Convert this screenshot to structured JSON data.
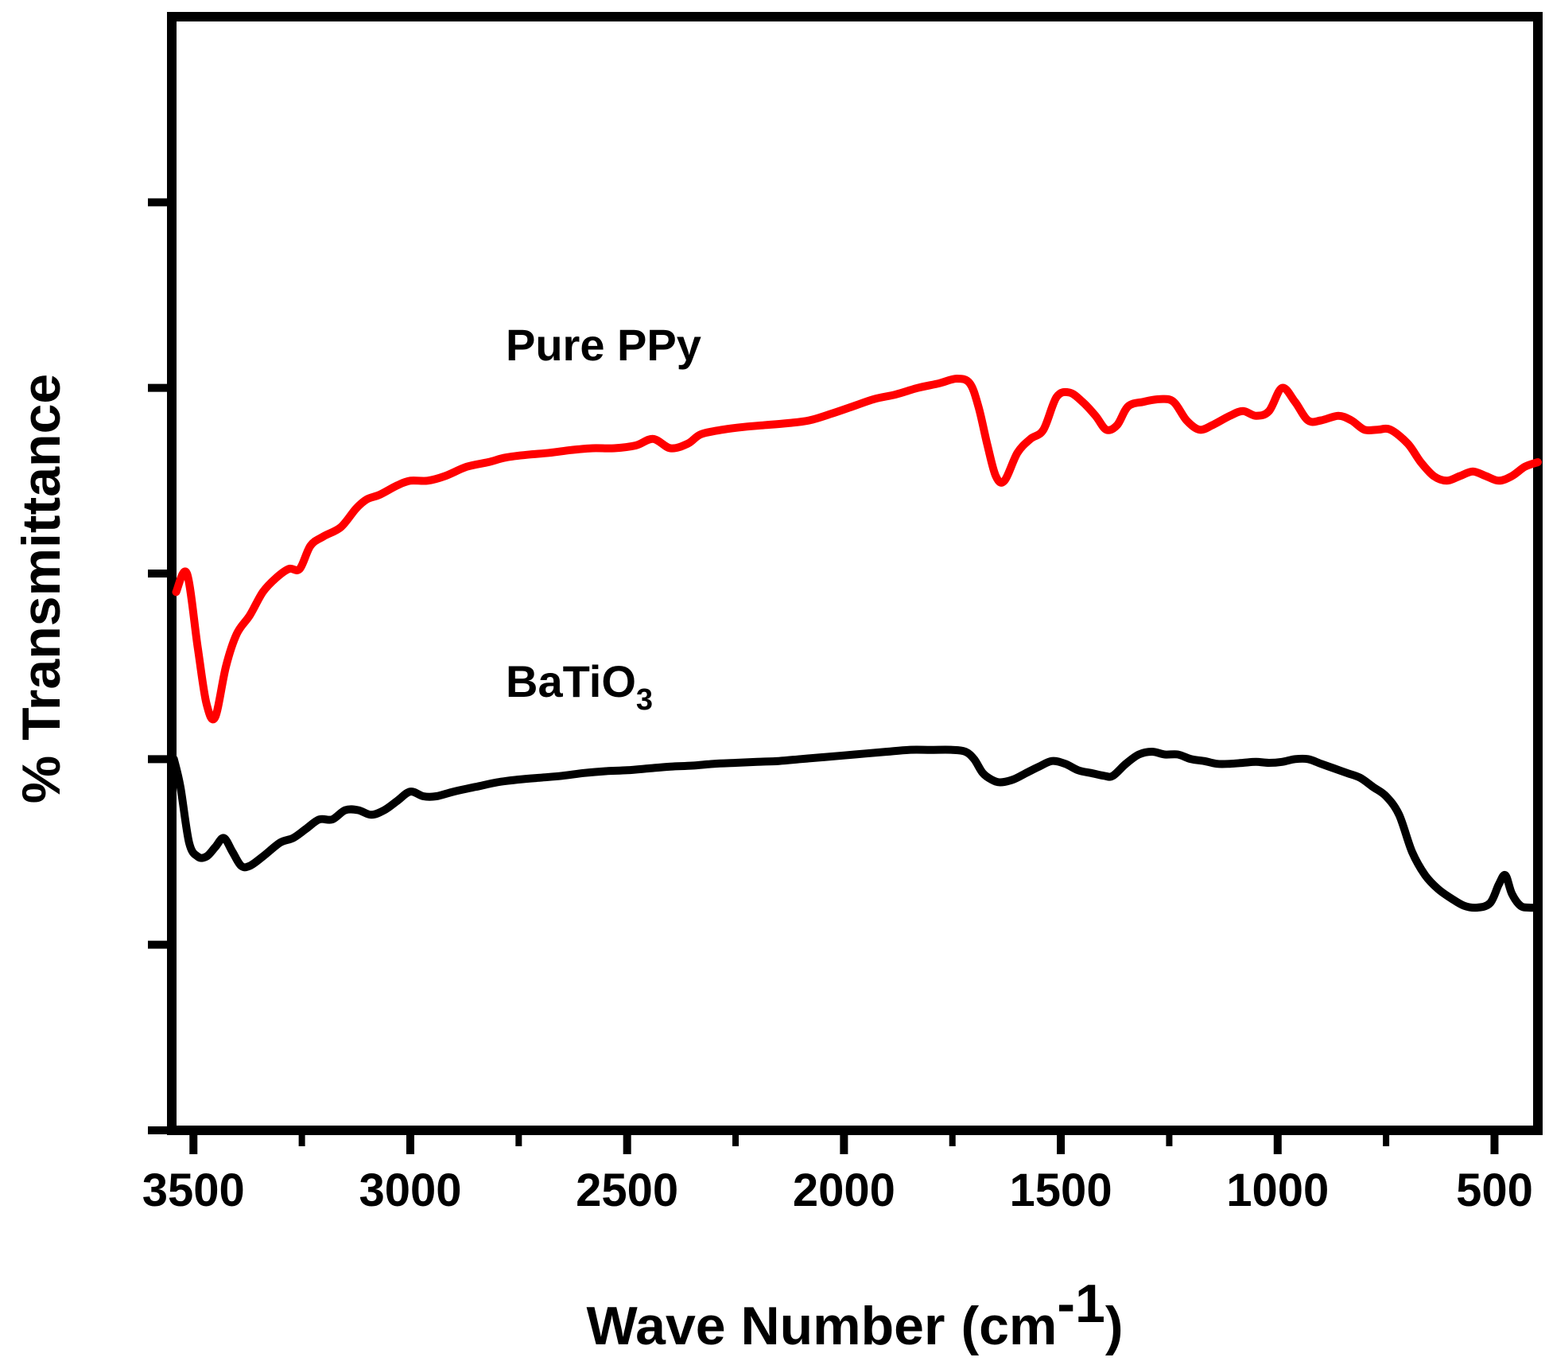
{
  "chart_data": {
    "type": "line",
    "title": "",
    "xlabel": "Wave Number",
    "xlabel_unit_base": "(cm",
    "xlabel_unit_exp": "-1",
    "xlabel_unit_close": ")",
    "ylabel": "% Transmittance",
    "xlim": [
      3550,
      400
    ],
    "x_reversed": true,
    "ylim": [
      0,
      12
    ],
    "y_ticks": [
      0,
      2,
      4,
      6,
      8,
      10
    ],
    "y_tick_labels_shown": false,
    "x_ticks": [
      3500,
      3000,
      2500,
      2000,
      1500,
      1000,
      500
    ],
    "x_tick_labels": [
      "3500",
      "3000",
      "2500",
      "2000",
      "1500",
      "1000",
      "500"
    ],
    "x_minor_ticks": [
      3250,
      2750,
      2250,
      1750,
      1250,
      750
    ],
    "legend": "none",
    "grid": false,
    "series": [
      {
        "name": "Pure PPy",
        "label_text": "Pure PPy",
        "color": "#ff0000",
        "points": [
          [
            3540,
            5.8
          ],
          [
            3515,
            6.0
          ],
          [
            3490,
            5.2
          ],
          [
            3470,
            4.6
          ],
          [
            3450,
            4.45
          ],
          [
            3425,
            5.0
          ],
          [
            3400,
            5.35
          ],
          [
            3370,
            5.55
          ],
          [
            3340,
            5.8
          ],
          [
            3310,
            5.95
          ],
          [
            3280,
            6.05
          ],
          [
            3255,
            6.05
          ],
          [
            3230,
            6.3
          ],
          [
            3200,
            6.4
          ],
          [
            3160,
            6.5
          ],
          [
            3125,
            6.7
          ],
          [
            3100,
            6.8
          ],
          [
            3070,
            6.85
          ],
          [
            3030,
            6.95
          ],
          [
            3000,
            7.0
          ],
          [
            2960,
            7.0
          ],
          [
            2920,
            7.05
          ],
          [
            2870,
            7.15
          ],
          [
            2820,
            7.2
          ],
          [
            2780,
            7.25
          ],
          [
            2730,
            7.28
          ],
          [
            2680,
            7.3
          ],
          [
            2630,
            7.33
          ],
          [
            2580,
            7.35
          ],
          [
            2530,
            7.35
          ],
          [
            2480,
            7.38
          ],
          [
            2440,
            7.45
          ],
          [
            2400,
            7.35
          ],
          [
            2360,
            7.4
          ],
          [
            2330,
            7.5
          ],
          [
            2280,
            7.55
          ],
          [
            2230,
            7.58
          ],
          [
            2180,
            7.6
          ],
          [
            2130,
            7.62
          ],
          [
            2080,
            7.65
          ],
          [
            2030,
            7.72
          ],
          [
            1980,
            7.8
          ],
          [
            1930,
            7.88
          ],
          [
            1880,
            7.93
          ],
          [
            1830,
            8.0
          ],
          [
            1780,
            8.05
          ],
          [
            1740,
            8.1
          ],
          [
            1710,
            8.05
          ],
          [
            1690,
            7.8
          ],
          [
            1670,
            7.4
          ],
          [
            1650,
            7.05
          ],
          [
            1630,
            7.0
          ],
          [
            1600,
            7.3
          ],
          [
            1570,
            7.45
          ],
          [
            1540,
            7.55
          ],
          [
            1510,
            7.9
          ],
          [
            1480,
            7.95
          ],
          [
            1450,
            7.85
          ],
          [
            1420,
            7.7
          ],
          [
            1395,
            7.55
          ],
          [
            1370,
            7.6
          ],
          [
            1345,
            7.8
          ],
          [
            1310,
            7.85
          ],
          [
            1270,
            7.88
          ],
          [
            1240,
            7.85
          ],
          [
            1210,
            7.65
          ],
          [
            1180,
            7.55
          ],
          [
            1150,
            7.6
          ],
          [
            1110,
            7.7
          ],
          [
            1080,
            7.75
          ],
          [
            1050,
            7.7
          ],
          [
            1020,
            7.75
          ],
          [
            990,
            8.0
          ],
          [
            960,
            7.85
          ],
          [
            930,
            7.65
          ],
          [
            900,
            7.65
          ],
          [
            860,
            7.7
          ],
          [
            830,
            7.65
          ],
          [
            800,
            7.55
          ],
          [
            770,
            7.55
          ],
          [
            740,
            7.55
          ],
          [
            700,
            7.4
          ],
          [
            670,
            7.2
          ],
          [
            640,
            7.05
          ],
          [
            610,
            7.0
          ],
          [
            580,
            7.05
          ],
          [
            550,
            7.1
          ],
          [
            520,
            7.05
          ],
          [
            490,
            7.0
          ],
          [
            460,
            7.05
          ],
          [
            430,
            7.15
          ],
          [
            400,
            7.2
          ]
        ]
      },
      {
        "name": "BaTiO3",
        "label_text": "BaTiO",
        "label_sub": "3",
        "color": "#000000",
        "points": [
          [
            3545,
            4.0
          ],
          [
            3530,
            3.7
          ],
          [
            3510,
            3.1
          ],
          [
            3490,
            2.95
          ],
          [
            3470,
            2.95
          ],
          [
            3450,
            3.05
          ],
          [
            3430,
            3.15
          ],
          [
            3410,
            3.0
          ],
          [
            3390,
            2.85
          ],
          [
            3370,
            2.85
          ],
          [
            3340,
            2.95
          ],
          [
            3300,
            3.1
          ],
          [
            3270,
            3.15
          ],
          [
            3240,
            3.25
          ],
          [
            3210,
            3.35
          ],
          [
            3180,
            3.35
          ],
          [
            3150,
            3.45
          ],
          [
            3120,
            3.45
          ],
          [
            3090,
            3.4
          ],
          [
            3060,
            3.45
          ],
          [
            3030,
            3.55
          ],
          [
            3000,
            3.65
          ],
          [
            2970,
            3.6
          ],
          [
            2940,
            3.6
          ],
          [
            2900,
            3.65
          ],
          [
            2850,
            3.7
          ],
          [
            2800,
            3.75
          ],
          [
            2750,
            3.78
          ],
          [
            2700,
            3.8
          ],
          [
            2650,
            3.82
          ],
          [
            2600,
            3.85
          ],
          [
            2550,
            3.87
          ],
          [
            2500,
            3.88
          ],
          [
            2450,
            3.9
          ],
          [
            2400,
            3.92
          ],
          [
            2350,
            3.93
          ],
          [
            2300,
            3.95
          ],
          [
            2250,
            3.96
          ],
          [
            2200,
            3.97
          ],
          [
            2150,
            3.98
          ],
          [
            2100,
            4.0
          ],
          [
            2050,
            4.02
          ],
          [
            2000,
            4.04
          ],
          [
            1950,
            4.06
          ],
          [
            1900,
            4.08
          ],
          [
            1850,
            4.1
          ],
          [
            1800,
            4.1
          ],
          [
            1750,
            4.1
          ],
          [
            1720,
            4.08
          ],
          [
            1700,
            4.0
          ],
          [
            1680,
            3.85
          ],
          [
            1660,
            3.78
          ],
          [
            1640,
            3.75
          ],
          [
            1610,
            3.78
          ],
          [
            1580,
            3.85
          ],
          [
            1550,
            3.92
          ],
          [
            1520,
            3.98
          ],
          [
            1490,
            3.95
          ],
          [
            1460,
            3.88
          ],
          [
            1430,
            3.85
          ],
          [
            1400,
            3.82
          ],
          [
            1380,
            3.82
          ],
          [
            1350,
            3.95
          ],
          [
            1320,
            4.05
          ],
          [
            1290,
            4.08
          ],
          [
            1260,
            4.05
          ],
          [
            1230,
            4.05
          ],
          [
            1200,
            4.0
          ],
          [
            1170,
            3.98
          ],
          [
            1140,
            3.95
          ],
          [
            1110,
            3.95
          ],
          [
            1080,
            3.96
          ],
          [
            1050,
            3.97
          ],
          [
            1020,
            3.96
          ],
          [
            990,
            3.97
          ],
          [
            960,
            4.0
          ],
          [
            930,
            4.0
          ],
          [
            900,
            3.95
          ],
          [
            870,
            3.9
          ],
          [
            840,
            3.85
          ],
          [
            810,
            3.8
          ],
          [
            780,
            3.7
          ],
          [
            750,
            3.6
          ],
          [
            720,
            3.4
          ],
          [
            690,
            3.0
          ],
          [
            660,
            2.75
          ],
          [
            630,
            2.6
          ],
          [
            600,
            2.5
          ],
          [
            570,
            2.42
          ],
          [
            540,
            2.4
          ],
          [
            510,
            2.45
          ],
          [
            490,
            2.65
          ],
          [
            475,
            2.75
          ],
          [
            460,
            2.55
          ],
          [
            440,
            2.42
          ],
          [
            420,
            2.4
          ],
          [
            400,
            2.4
          ]
        ]
      }
    ]
  }
}
